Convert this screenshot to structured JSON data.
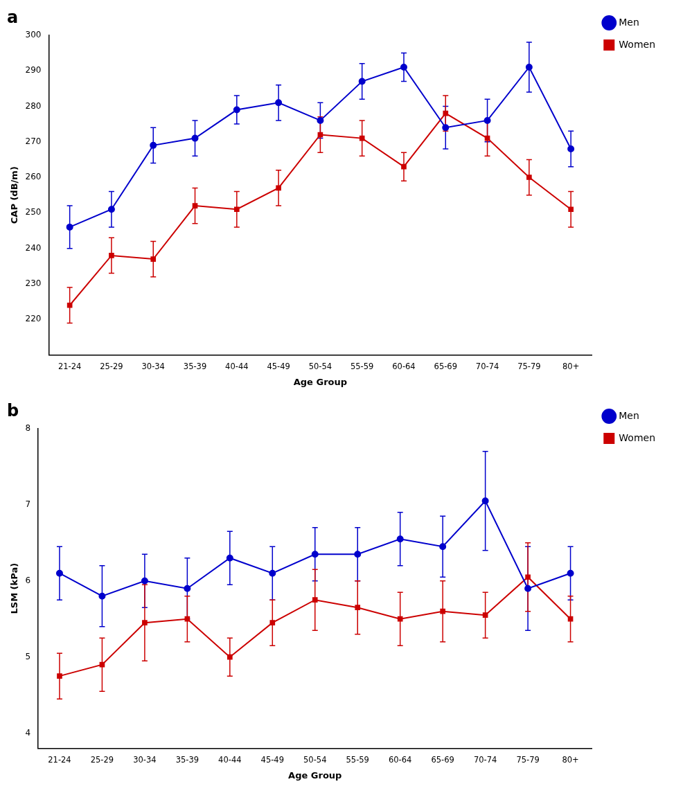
{
  "chart_data": [
    {
      "type": "line",
      "title": "a",
      "categories": [
        "21-24",
        "25-29",
        "30-34",
        "35-39",
        "40-44",
        "45-49",
        "50-54",
        "55-59",
        "60-64",
        "65-69",
        "70-74",
        "75-79",
        "80+"
      ],
      "series": [
        {
          "name": "Men",
          "color": "#0000CC",
          "marker": "circle",
          "values": [
            246,
            251,
            269,
            271,
            279,
            281,
            276,
            287,
            291,
            274,
            276,
            291,
            268
          ],
          "errors": [
            6,
            5,
            5,
            5,
            4,
            5,
            5,
            5,
            4,
            6,
            6,
            7,
            5
          ]
        },
        {
          "name": "Women",
          "color": "#CC0000",
          "marker": "square",
          "values": [
            224,
            238,
            237,
            252,
            251,
            257,
            272,
            271,
            263,
            278,
            271,
            260,
            251
          ],
          "errors": [
            5,
            5,
            5,
            5,
            5,
            5,
            5,
            5,
            4,
            5,
            5,
            5,
            5
          ]
        }
      ],
      "xlabel": "Age Group",
      "ylabel": "CAP (dB/m)",
      "ylim": [
        210,
        300
      ],
      "yticks": [
        220,
        230,
        240,
        250,
        260,
        270,
        280,
        290,
        300
      ],
      "grid": false,
      "legend": "right"
    },
    {
      "type": "line",
      "title": "b",
      "categories": [
        "21-24",
        "25-29",
        "30-34",
        "35-39",
        "40-44",
        "45-49",
        "50-54",
        "55-59",
        "60-64",
        "65-69",
        "70-74",
        "75-79",
        "80+"
      ],
      "series": [
        {
          "name": "Men",
          "color": "#0000CC",
          "marker": "circle",
          "values": [
            6.1,
            5.8,
            6.0,
            5.9,
            6.3,
            6.1,
            6.35,
            6.35,
            6.55,
            6.45,
            7.05,
            5.9,
            6.1
          ],
          "errors": [
            0.35,
            0.4,
            0.35,
            0.4,
            0.35,
            0.35,
            0.35,
            0.35,
            0.35,
            0.4,
            0.65,
            0.55,
            0.35
          ]
        },
        {
          "name": "Women",
          "color": "#CC0000",
          "marker": "square",
          "values": [
            4.75,
            4.9,
            5.45,
            5.5,
            5.0,
            5.45,
            5.75,
            5.65,
            5.5,
            5.6,
            5.55,
            6.05,
            5.5
          ],
          "errors": [
            0.3,
            0.35,
            0.5,
            0.3,
            0.25,
            0.3,
            0.4,
            0.35,
            0.35,
            0.4,
            0.3,
            0.45,
            0.3
          ]
        }
      ],
      "xlabel": "Age Group",
      "ylabel": "LSM (kPa)",
      "ylim": [
        3.8,
        8.0
      ],
      "yticks": [
        4,
        5,
        6,
        7,
        8
      ],
      "grid": false,
      "legend": "right"
    }
  ]
}
